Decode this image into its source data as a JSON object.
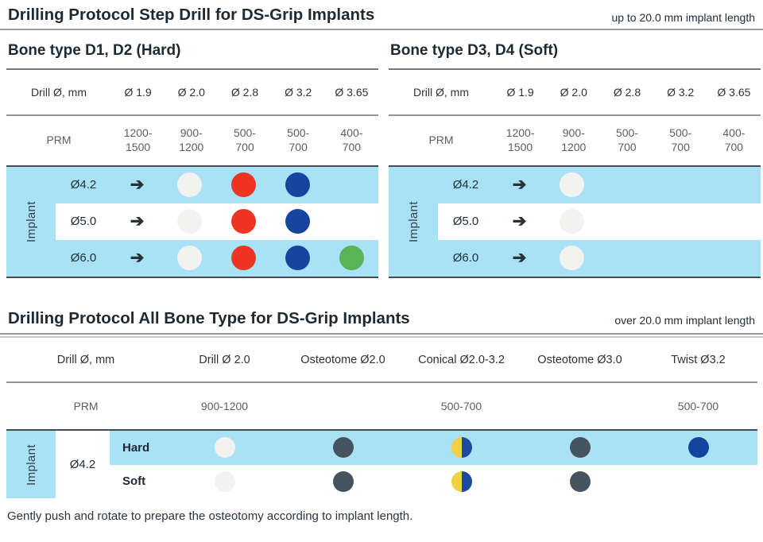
{
  "colors": {
    "highlight_blue": "#a9e2f7",
    "white_dot": "#f2f3f0",
    "red_dot": "#ee3524",
    "blue_dot": "#17459e",
    "green_dot": "#57b457",
    "slate_dot": "#46545f",
    "navy_dot": "#14459e",
    "half_yellow": "#efd23f",
    "half_blue": "#1c4aa0"
  },
  "glyphs": {
    "arrow": "➔"
  },
  "section1": {
    "title": "Drilling Protocol Step Drill for DS-Grip Implants",
    "length_note": "up to 20.0 mm implant length",
    "tables": [
      {
        "heading": "Bone type D1, D2 (Hard)",
        "col_label": "Drill Ø, mm",
        "columns": [
          "Ø 1.9",
          "Ø 2.0",
          "Ø 2.8",
          "Ø 3.2",
          "Ø 3.65"
        ],
        "prm_label": "PRM",
        "prm_values": [
          "1200-\n1500",
          "900-\n1200",
          "500-\n700",
          "500-\n700",
          "400-\n700"
        ],
        "implant_label": "Implant",
        "rows": [
          {
            "size": "Ø4.2",
            "highlight": true,
            "dots": [
              "white",
              "red",
              "blue",
              null
            ]
          },
          {
            "size": "Ø5.0",
            "highlight": false,
            "dots": [
              "white",
              "red",
              "blue",
              null
            ]
          },
          {
            "size": "Ø6.0",
            "highlight": true,
            "dots": [
              "white",
              "red",
              "blue",
              "green"
            ]
          }
        ]
      },
      {
        "heading": "Bone type D3, D4 (Soft)",
        "col_label": "Drill Ø, mm",
        "columns": [
          "Ø 1.9",
          "Ø 2.0",
          "Ø 2.8",
          "Ø 3.2",
          "Ø 3.65"
        ],
        "prm_label": "PRM",
        "prm_values": [
          "1200-\n1500",
          "900-\n1200",
          "500-\n700",
          "500-\n700",
          "400-\n700"
        ],
        "implant_label": "Implant",
        "rows": [
          {
            "size": "Ø4.2",
            "highlight": true,
            "dots": [
              "white",
              null,
              null,
              null
            ]
          },
          {
            "size": "Ø5.0",
            "highlight": false,
            "dots": [
              "white",
              null,
              null,
              null
            ]
          },
          {
            "size": "Ø6.0",
            "highlight": true,
            "dots": [
              "white",
              null,
              null,
              null
            ]
          }
        ]
      }
    ]
  },
  "section2": {
    "title": "Drilling Protocol All Bone Type for DS-Grip Implants",
    "length_note": "over 20.0 mm implant length",
    "col_label": "Drill Ø, mm",
    "columns": [
      "Drill Ø 2.0",
      "Osteotome Ø2.0",
      "Conical Ø2.0-3.2",
      "Osteotome Ø3.0",
      "Twist Ø3.2"
    ],
    "prm_label": "PRM",
    "prm_values": [
      "900-1200",
      "",
      "500-700",
      "",
      "500-700"
    ],
    "implant_label": "Implant",
    "implant_size": "Ø4.2",
    "rows": [
      {
        "label": "Hard",
        "highlight": true,
        "dots": [
          "white",
          "slate",
          "half",
          "slate",
          "navy"
        ]
      },
      {
        "label": "Soft",
        "highlight": false,
        "dots": [
          "white",
          "slate",
          "half",
          "slate",
          null
        ]
      }
    ]
  },
  "footnote": "Gently push and rotate to prepare the osteotomy according to implant length."
}
